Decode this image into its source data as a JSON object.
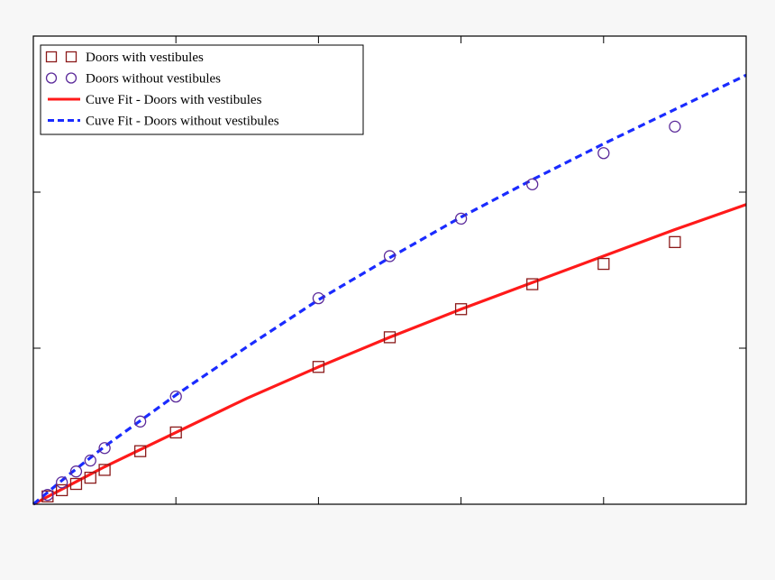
{
  "chart_data": {
    "type": "scatter",
    "title": "",
    "xlabel": "",
    "ylabel": "",
    "xlim": [
      0,
      100
    ],
    "ylim": [
      0,
      300
    ],
    "x_ticks": [
      20,
      40,
      60,
      80,
      100
    ],
    "y_ticks": [
      100,
      200,
      300
    ],
    "grid": false,
    "legend_position": "top-left",
    "series": [
      {
        "name": "Doors with vestibules",
        "kind": "points",
        "marker": "square",
        "color": "#8b1a1a",
        "x": [
          2,
          4,
          6,
          8,
          10,
          15,
          20,
          40,
          50,
          60,
          70,
          80,
          90
        ],
        "y": [
          5,
          9,
          13,
          17,
          22,
          34,
          46,
          88,
          107,
          125,
          141,
          154,
          168
        ]
      },
      {
        "name": "Doors without vestibules",
        "kind": "points",
        "marker": "circle",
        "color": "#5b2a9a",
        "x": [
          2,
          4,
          6,
          8,
          10,
          15,
          20,
          40,
          50,
          60,
          70,
          80,
          90
        ],
        "y": [
          6,
          14,
          21,
          28,
          36,
          53,
          69,
          132,
          159,
          183,
          205,
          225,
          242
        ]
      },
      {
        "name": "Cuve Fit - Doors with vestibules",
        "kind": "line",
        "style": "solid",
        "color": "#ff1a1a",
        "x": [
          0,
          5,
          10,
          20,
          30,
          40,
          50,
          60,
          70,
          80,
          90,
          100
        ],
        "y": [
          0,
          12,
          24,
          46,
          68,
          88,
          107,
          125,
          142,
          159,
          176,
          192
        ]
      },
      {
        "name": "Cuve Fit - Doors without vestibules",
        "kind": "line",
        "style": "dashed",
        "color": "#1a2bff",
        "x": [
          0,
          5,
          10,
          20,
          30,
          40,
          50,
          60,
          70,
          80,
          90,
          100
        ],
        "y": [
          0,
          19,
          37,
          70,
          101,
          131,
          158,
          184,
          208,
          231,
          253,
          275
        ]
      }
    ]
  }
}
